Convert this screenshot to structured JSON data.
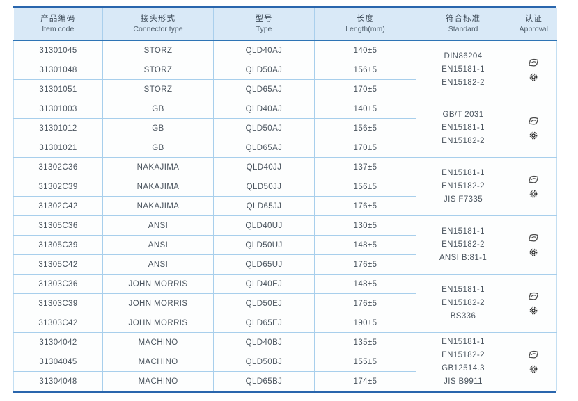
{
  "table": {
    "columns": [
      {
        "zh": "产品编码",
        "en": "Item code"
      },
      {
        "zh": "接头形式",
        "en": "Connector type"
      },
      {
        "zh": "型号",
        "en": "Type"
      },
      {
        "zh": "长度",
        "en": "Length(mm)"
      },
      {
        "zh": "符合标准",
        "en": "Standard"
      },
      {
        "zh": "认证",
        "en": "Approval"
      }
    ],
    "approval_icons": [
      "certification-logo",
      "approval-seal"
    ],
    "groups": [
      {
        "rows": [
          {
            "item_code": "31301045",
            "connector_type": "STORZ",
            "type": "QLD40AJ",
            "length": "140±5"
          },
          {
            "item_code": "31301048",
            "connector_type": "STORZ",
            "type": "QLD50AJ",
            "length": "156±5"
          },
          {
            "item_code": "31301051",
            "connector_type": "STORZ",
            "type": "QLD65AJ",
            "length": "170±5"
          }
        ],
        "standards": [
          "DIN86204",
          "EN15181-1",
          "EN15182-2"
        ]
      },
      {
        "rows": [
          {
            "item_code": "31301003",
            "connector_type": "GB",
            "type": "QLD40AJ",
            "length": "140±5"
          },
          {
            "item_code": "31301012",
            "connector_type": "GB",
            "type": "QLD50AJ",
            "length": "156±5"
          },
          {
            "item_code": "31301021",
            "connector_type": "GB",
            "type": "QLD65AJ",
            "length": "170±5"
          }
        ],
        "standards": [
          "GB/T 2031",
          "EN15181-1",
          "EN15182-2"
        ]
      },
      {
        "rows": [
          {
            "item_code": "31302C36",
            "connector_type": "NAKAJIMA",
            "type": "QLD40JJ",
            "length": "137±5"
          },
          {
            "item_code": "31302C39",
            "connector_type": "NAKAJIMA",
            "type": "QLD50JJ",
            "length": "156±5"
          },
          {
            "item_code": "31302C42",
            "connector_type": "NAKAJIMA",
            "type": "QLD65JJ",
            "length": "176±5"
          }
        ],
        "standards": [
          "EN15181-1",
          "EN15182-2",
          "JIS F7335"
        ]
      },
      {
        "rows": [
          {
            "item_code": "31305C36",
            "connector_type": "ANSI",
            "type": "QLD40UJ",
            "length": "130±5"
          },
          {
            "item_code": "31305C39",
            "connector_type": "ANSI",
            "type": "QLD50UJ",
            "length": "148±5"
          },
          {
            "item_code": "31305C42",
            "connector_type": "ANSI",
            "type": "QLD65UJ",
            "length": "176±5"
          }
        ],
        "standards": [
          "EN15181-1",
          "EN15182-2",
          "ANSI B:81-1"
        ]
      },
      {
        "rows": [
          {
            "item_code": "31303C36",
            "connector_type": "JOHN MORRIS",
            "type": "QLD40EJ",
            "length": "148±5"
          },
          {
            "item_code": "31303C39",
            "connector_type": "JOHN MORRIS",
            "type": "QLD50EJ",
            "length": "176±5"
          },
          {
            "item_code": "31303C42",
            "connector_type": "JOHN MORRIS",
            "type": "QLD65EJ",
            "length": "190±5"
          }
        ],
        "standards": [
          "EN15181-1",
          "EN15182-2",
          "BS336"
        ]
      },
      {
        "rows": [
          {
            "item_code": "31304042",
            "connector_type": "MACHINO",
            "type": "QLD40BJ",
            "length": "135±5"
          },
          {
            "item_code": "31304045",
            "connector_type": "MACHINO",
            "type": "QLD50BJ",
            "length": "155±5"
          },
          {
            "item_code": "31304048",
            "connector_type": "MACHINO",
            "type": "QLD65BJ",
            "length": "174±5"
          }
        ],
        "standards": [
          "EN15181-1",
          "EN15182-2",
          "GB12514.3",
          "JIS B9911"
        ]
      }
    ]
  },
  "colors": {
    "accent_border": "#2a66ad",
    "header_bg": "#d9e9f7",
    "header_rule": "#2e74b5",
    "grid_line": "#a8cfec",
    "text": "#4a545e"
  }
}
